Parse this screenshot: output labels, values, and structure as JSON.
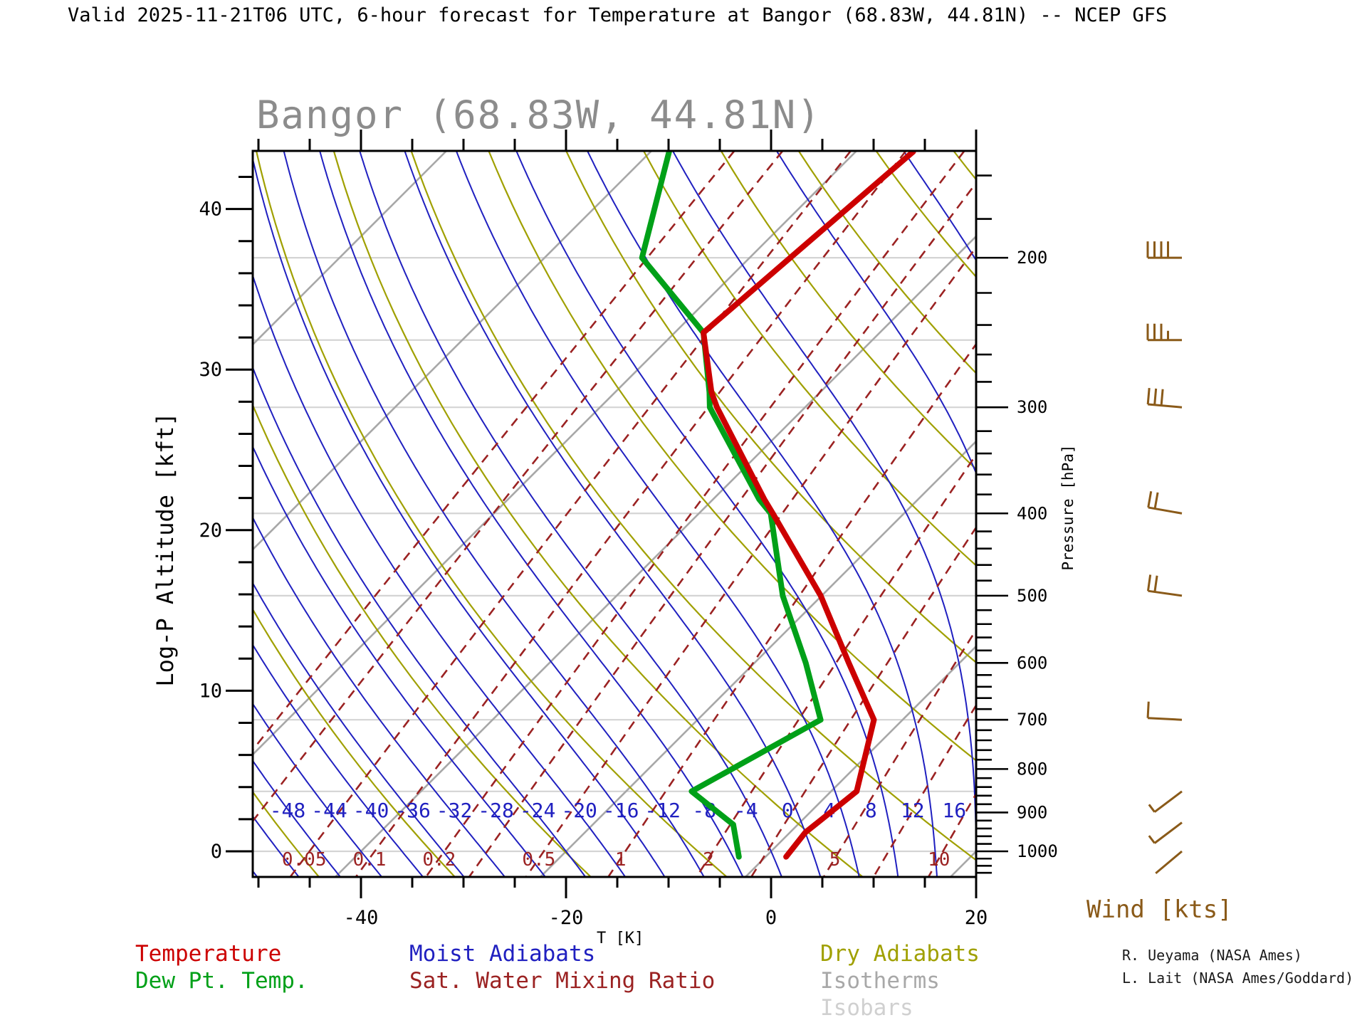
{
  "main_title": "Valid 2025-11-21T06 UTC, 6-hour forecast for Temperature at Bangor (68.83W, 44.81N) -- NCEP GFS",
  "chart_title": "Bangor (68.83W, 44.81N)",
  "axes": {
    "left": {
      "label": "Log-P Altitude [kft]",
      "major_ticks": [
        0,
        10,
        20,
        30,
        40
      ],
      "minor_step_kft": 2
    },
    "right": {
      "label": "Pressure [hPa]",
      "major_ticks": [
        200,
        300,
        400,
        500,
        600,
        700,
        800,
        900,
        1000
      ],
      "minor_step_hpa": 20
    },
    "bottom": {
      "label": "T [K]",
      "major_ticks": [
        -40,
        -20,
        0,
        20
      ],
      "minor_step": 5
    }
  },
  "legend": [
    {
      "label": "Temperature",
      "color": "#cc0000",
      "col": 1,
      "row": 1
    },
    {
      "label": "Dew Pt. Temp.",
      "color": "#00a018",
      "col": 1,
      "row": 2
    },
    {
      "label": "Moist Adiabats",
      "color": "#2020c0",
      "col": 2,
      "row": 1
    },
    {
      "label": "Sat. Water Mixing Ratio",
      "color": "#9b2222",
      "col": 2,
      "row": 2
    },
    {
      "label": "Dry Adiabats",
      "color": "#a0a000",
      "col": 3,
      "row": 1
    },
    {
      "label": "Isotherms",
      "color": "#a8a8a8",
      "col": 3,
      "row": 2
    },
    {
      "label": "Isobars",
      "color": "#d0d0d0",
      "col": 3,
      "row": 3
    }
  ],
  "wind": {
    "label": "Wind [kts]",
    "color": "#8a5a19",
    "barbs": [
      {
        "p": 200,
        "kts": 40,
        "full": 4,
        "half": 0,
        "tail_angle_deg": 180
      },
      {
        "p": 250,
        "kts": 35,
        "full": 3,
        "half": 1,
        "tail_angle_deg": 180
      },
      {
        "p": 300,
        "kts": 30,
        "full": 3,
        "half": 0,
        "tail_angle_deg": 185
      },
      {
        "p": 400,
        "kts": 20,
        "full": 2,
        "half": 0,
        "tail_angle_deg": 190
      },
      {
        "p": 500,
        "kts": 20,
        "full": 2,
        "half": 0,
        "tail_angle_deg": 188
      },
      {
        "p": 700,
        "kts": 10,
        "full": 1,
        "half": 0,
        "tail_angle_deg": 183
      },
      {
        "p": 850,
        "kts": 5,
        "full": 0,
        "half": 1,
        "tail_angle_deg": 143
      },
      {
        "p": 925,
        "kts": 5,
        "full": 0,
        "half": 1,
        "tail_angle_deg": 143
      },
      {
        "p": 1000,
        "kts": 2,
        "full": 0,
        "half": 0,
        "tail_angle_deg": 140
      }
    ]
  },
  "credits": [
    "R. Ueyama (NASA Ames)",
    "L. Lait (NASA Ames/Goddard)"
  ],
  "chart_data": {
    "type": "line",
    "variant": "skew-t-log-p-sounding",
    "title": "Bangor (68.83W, 44.81N)",
    "xlabel": "T [K]",
    "ylabel_left": "Log-P Altitude [kft]",
    "ylabel_right": "Pressure [hPa]",
    "x_range_degC": [
      -50.6,
      20
    ],
    "pressure_range_hpa": [
      150,
      1072
    ],
    "isobar_lines_hpa": [
      200,
      250,
      300,
      400,
      500,
      700,
      850,
      1000
    ],
    "isotherm_lines_degC": [
      -140,
      -120,
      -100,
      -80,
      -60,
      -40,
      -20,
      0,
      20,
      40
    ],
    "dry_adiabat_theta_K": [
      175,
      188,
      201,
      214,
      227,
      240,
      253,
      266,
      279,
      292,
      305,
      318,
      331,
      344,
      357,
      370,
      383,
      396,
      409,
      422,
      435,
      448,
      461,
      474,
      487,
      500,
      513,
      526
    ],
    "moist_adiabat_start_degC": [
      -64,
      -60,
      -56,
      -52,
      -48,
      -44,
      -40,
      -36,
      -32,
      -28,
      -24,
      -20,
      -16,
      -12,
      -8,
      -4,
      0,
      4,
      8,
      12,
      16,
      20,
      24,
      28,
      32
    ],
    "moist_adiabat_labels": [
      -48,
      -44,
      -40,
      -36,
      -32,
      -28,
      -24,
      -20,
      -16,
      -12,
      -8,
      -4,
      0,
      4,
      8,
      12,
      16
    ],
    "mixing_ratio_lines_gkg": [
      0.01,
      0.02,
      0.05,
      0.1,
      0.2,
      0.3,
      0.5,
      1,
      2,
      3,
      5,
      7,
      10,
      15,
      20,
      30
    ],
    "mixing_ratio_labels": [
      0.05,
      0.1,
      0.2,
      0.5,
      1,
      2,
      5,
      10
    ],
    "series": [
      {
        "name": "Temperature",
        "color": "#cc0000",
        "points_p_hpa_T_degC": [
          [
            1015,
            2.0
          ],
          [
            950,
            1.5
          ],
          [
            850,
            2.5
          ],
          [
            700,
            -2.8
          ],
          [
            600,
            -10.8
          ],
          [
            500,
            -20.1
          ],
          [
            400,
            -32.8
          ],
          [
            385,
            -35.0
          ],
          [
            300,
            -48.6
          ],
          [
            288,
            -50.6
          ],
          [
            245,
            -57.2
          ],
          [
            150,
            -54.4
          ]
        ]
      },
      {
        "name": "Dew Pt. Temp.",
        "color": "#00a018",
        "points_p_hpa_T_degC": [
          [
            1015,
            -2.6
          ],
          [
            930,
            -6.3
          ],
          [
            850,
            -13.6
          ],
          [
            700,
            -8.0
          ],
          [
            600,
            -15.0
          ],
          [
            500,
            -23.8
          ],
          [
            400,
            -33.0
          ],
          [
            385,
            -35.5
          ],
          [
            300,
            -49.3
          ],
          [
            288,
            -50.8
          ],
          [
            245,
            -57.2
          ],
          [
            200,
            -70.5
          ],
          [
            150,
            -78.2
          ]
        ]
      }
    ],
    "wind_barbs_kts": [
      {
        "p": 200,
        "kts": 40
      },
      {
        "p": 250,
        "kts": 35
      },
      {
        "p": 300,
        "kts": 30
      },
      {
        "p": 400,
        "kts": 20
      },
      {
        "p": 500,
        "kts": 20
      },
      {
        "p": 700,
        "kts": 10
      },
      {
        "p": 850,
        "kts": 5
      },
      {
        "p": 925,
        "kts": 5
      },
      {
        "p": 1000,
        "kts": 2
      }
    ],
    "legend_position": "bottom",
    "grid": "skew-t background families (isobars, isotherms, dry/moist adiabats, mixing ratio)"
  },
  "colors": {
    "temperature": "#cc0000",
    "dewpoint": "#00a018",
    "moist_adiabat": "#2020c0",
    "dry_adiabat": "#a0a000",
    "isotherm": "#a8a8a8",
    "isobar": "#d4d4d4",
    "mixing_ratio": "#9b2222",
    "wind": "#8a5a19",
    "chart_title": "#8c8c8c"
  }
}
